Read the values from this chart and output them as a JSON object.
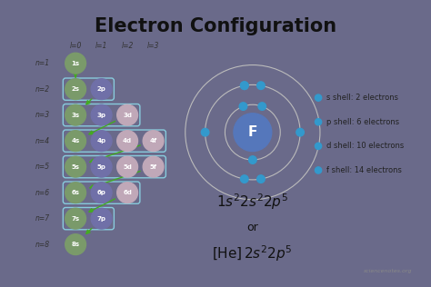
{
  "title": "Electron Configuration",
  "bg_color": "#6a6a8a",
  "panel_color": "#f2f2f2",
  "title_fontsize": 15,
  "orbitals": [
    {
      "label": "1s",
      "col": 0,
      "row": 0,
      "color": "#7a9a6a"
    },
    {
      "label": "2s",
      "col": 0,
      "row": 1,
      "color": "#7a9a6a"
    },
    {
      "label": "2p",
      "col": 1,
      "row": 1,
      "color": "#7070a8"
    },
    {
      "label": "3s",
      "col": 0,
      "row": 2,
      "color": "#7a9a6a"
    },
    {
      "label": "3p",
      "col": 1,
      "row": 2,
      "color": "#7070a8"
    },
    {
      "label": "3d",
      "col": 2,
      "row": 2,
      "color": "#c0a8b8"
    },
    {
      "label": "4s",
      "col": 0,
      "row": 3,
      "color": "#7a9a6a"
    },
    {
      "label": "4p",
      "col": 1,
      "row": 3,
      "color": "#7070a8"
    },
    {
      "label": "4d",
      "col": 2,
      "row": 3,
      "color": "#c0a8b8"
    },
    {
      "label": "4f",
      "col": 3,
      "row": 3,
      "color": "#c0a8b8"
    },
    {
      "label": "5s",
      "col": 0,
      "row": 4,
      "color": "#7a9a6a"
    },
    {
      "label": "5p",
      "col": 1,
      "row": 4,
      "color": "#7070a8"
    },
    {
      "label": "5d",
      "col": 2,
      "row": 4,
      "color": "#c0a8b8"
    },
    {
      "label": "5f",
      "col": 3,
      "row": 4,
      "color": "#c0a8b8"
    },
    {
      "label": "6s",
      "col": 0,
      "row": 5,
      "color": "#7a9a6a"
    },
    {
      "label": "6p",
      "col": 1,
      "row": 5,
      "color": "#7070a8"
    },
    {
      "label": "6d",
      "col": 2,
      "row": 5,
      "color": "#c0a8b8"
    },
    {
      "label": "7s",
      "col": 0,
      "row": 6,
      "color": "#7a9a6a"
    },
    {
      "label": "7p",
      "col": 1,
      "row": 6,
      "color": "#7070a8"
    },
    {
      "label": "8s",
      "col": 0,
      "row": 7,
      "color": "#7a9a6a"
    }
  ],
  "n_labels": [
    "n=1",
    "n=2",
    "n=3",
    "n=4",
    "n=5",
    "n=6",
    "n=7",
    "n=8"
  ],
  "l_labels": [
    "l=0",
    "l=1",
    "l=2",
    "l=3"
  ],
  "shell_info": [
    "s shell: 2 electrons",
    "p shell: 6 electrons",
    "d shell: 10 electrons",
    "f shell: 14 electrons"
  ],
  "watermark": "sciencenotes.org",
  "nucleus_color": "#5577bb",
  "nucleus_label": "F",
  "electron_color": "#3399cc",
  "orbit_color": "#bbbbbb",
  "arrow_color": "#44aa22",
  "bracket_color": "#88ccdd"
}
